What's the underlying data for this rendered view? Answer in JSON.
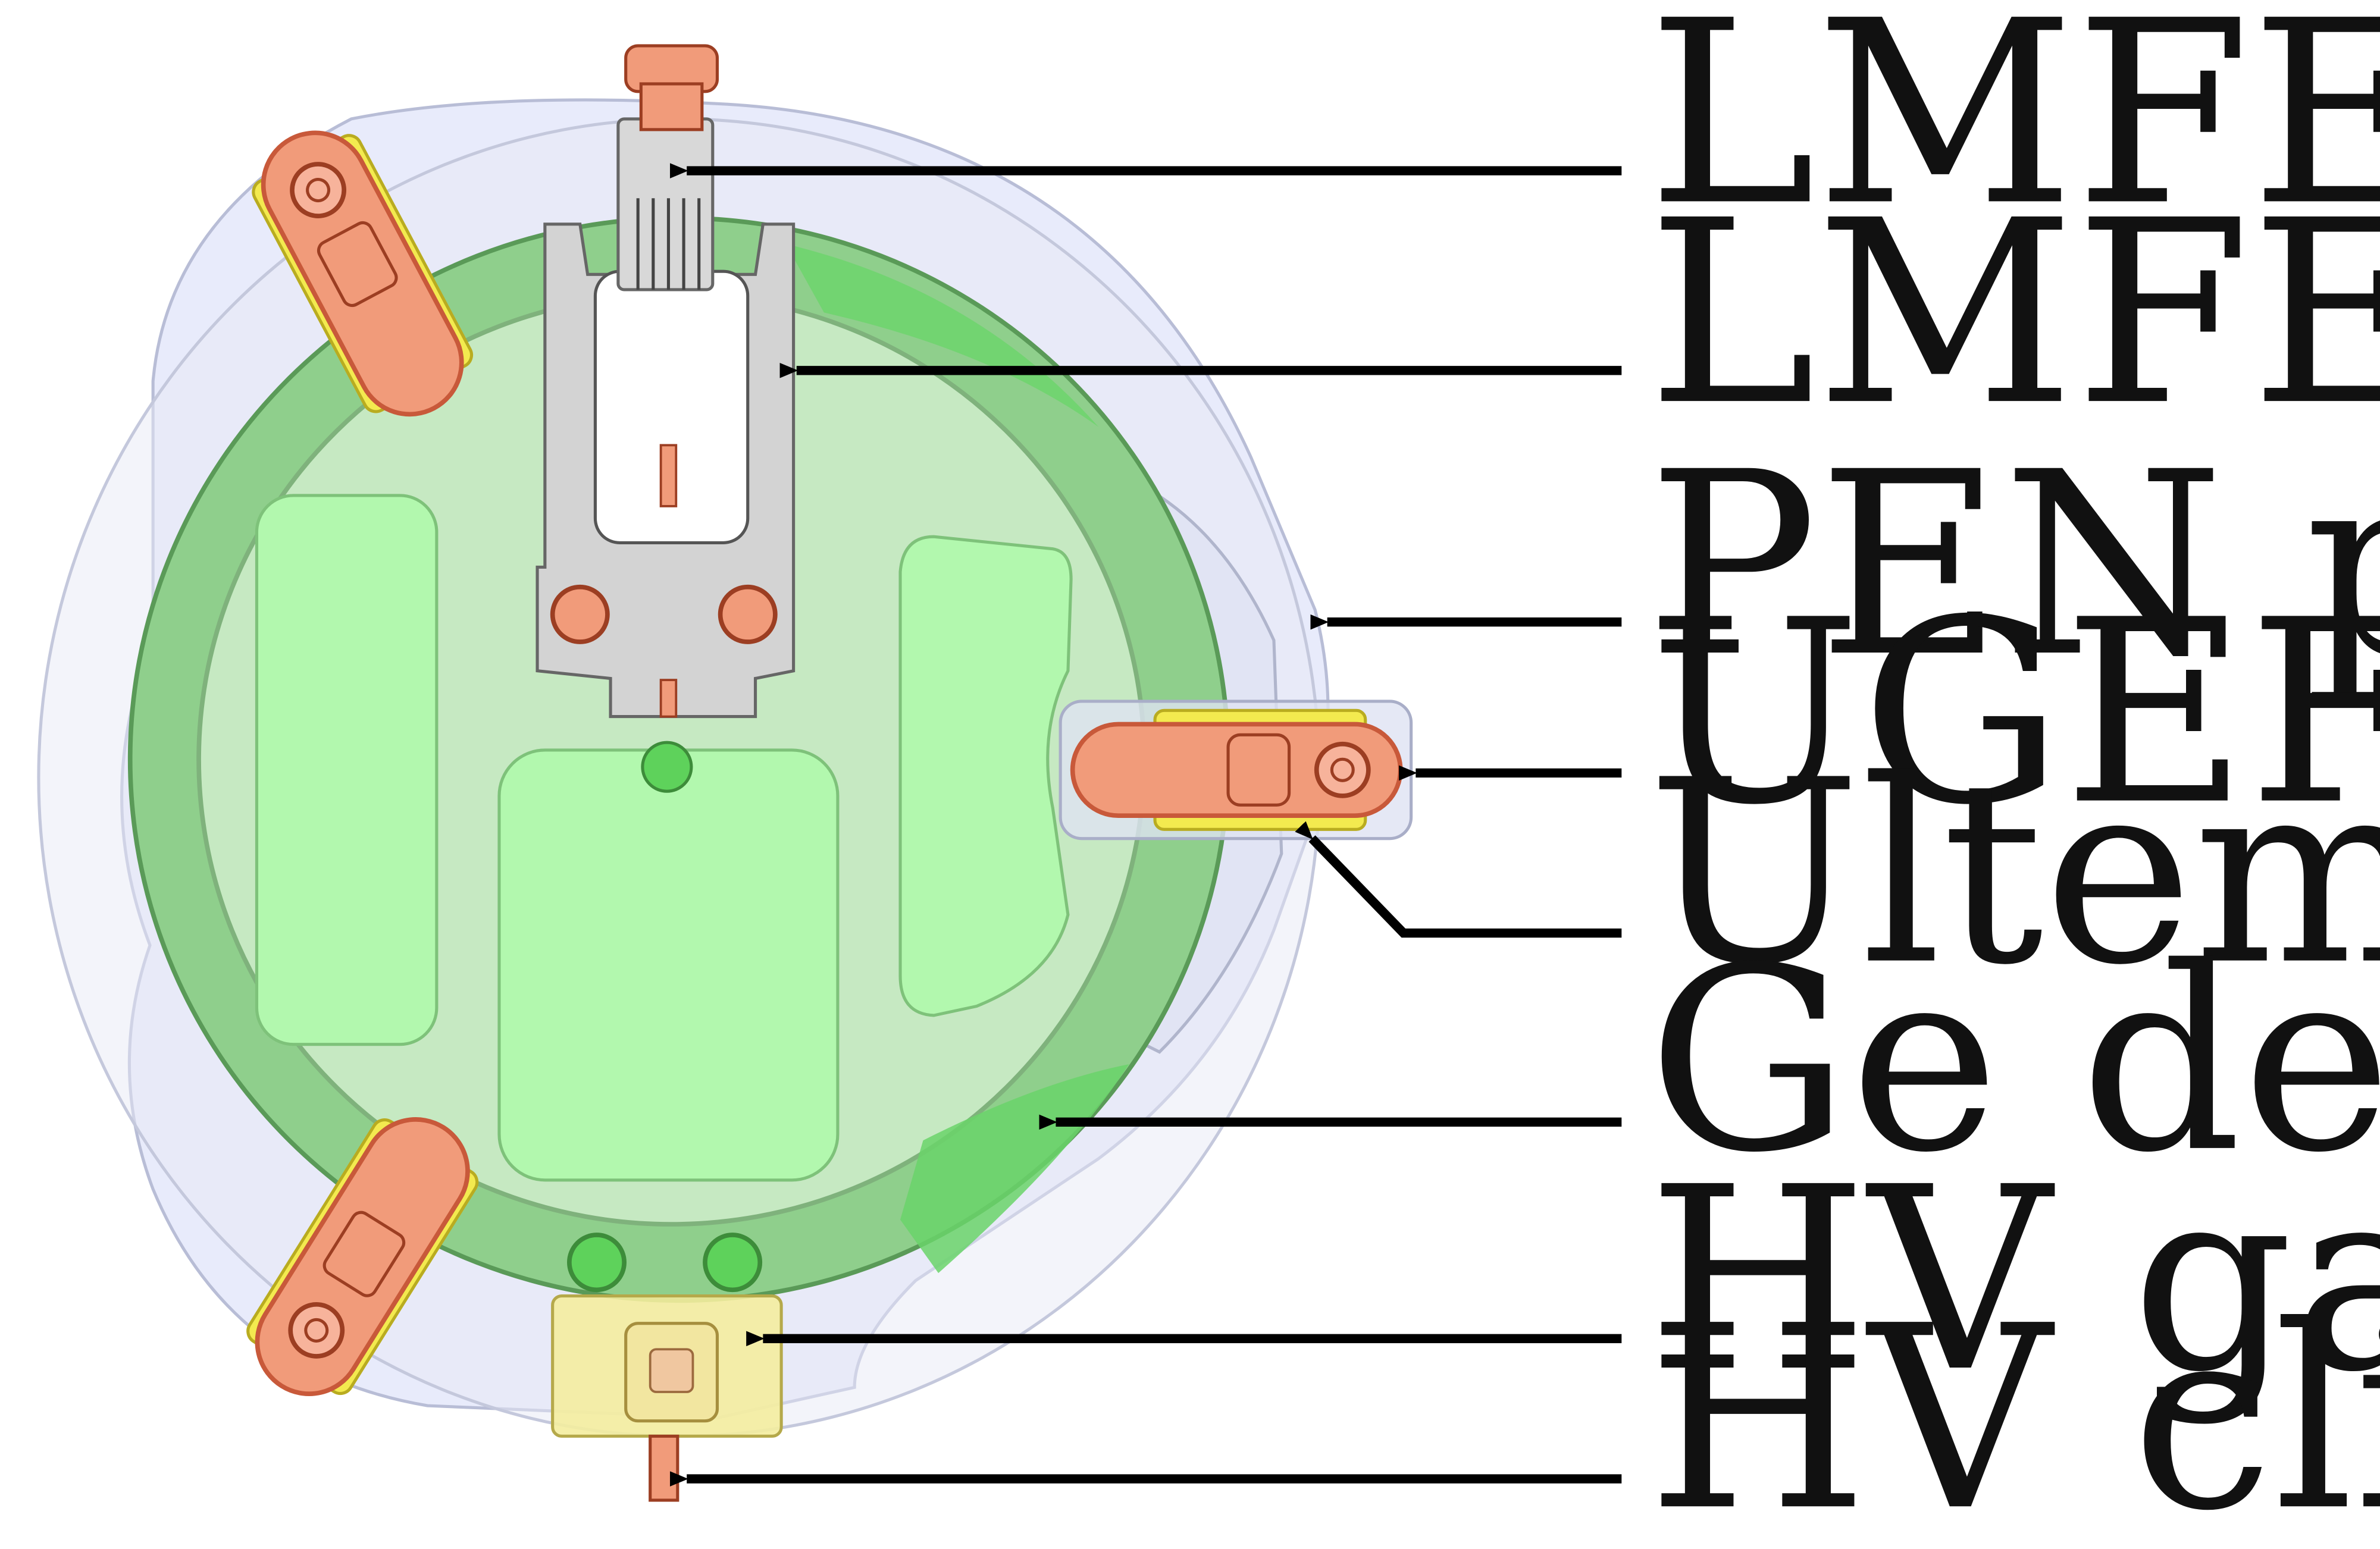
{
  "labels": {
    "lmfe": "LMFE",
    "lmfe_garage": "LMFE garage",
    "pen_plate": "PEN plate",
    "ugefcu_rod": "UGEFCu rod",
    "ultem_insulator": "Ultem insulator",
    "ge_detector": "Ge detector",
    "hv_garage": "HV garage",
    "hv_clip": "HV clip"
  },
  "colors": {
    "pen_plate": "#e6e9fb",
    "ge_ring": "#8fcf8c",
    "ge_face": "#c6e9c2",
    "ge_pocket": "#b2f8ae",
    "copper": "#f19b7a",
    "copper_dark": "#c8593a",
    "ultem": "#f3ea4f",
    "lmfe_garage": "#d3d3d3",
    "hv_garage": "#f4ed9e",
    "arrow": "#000000"
  }
}
